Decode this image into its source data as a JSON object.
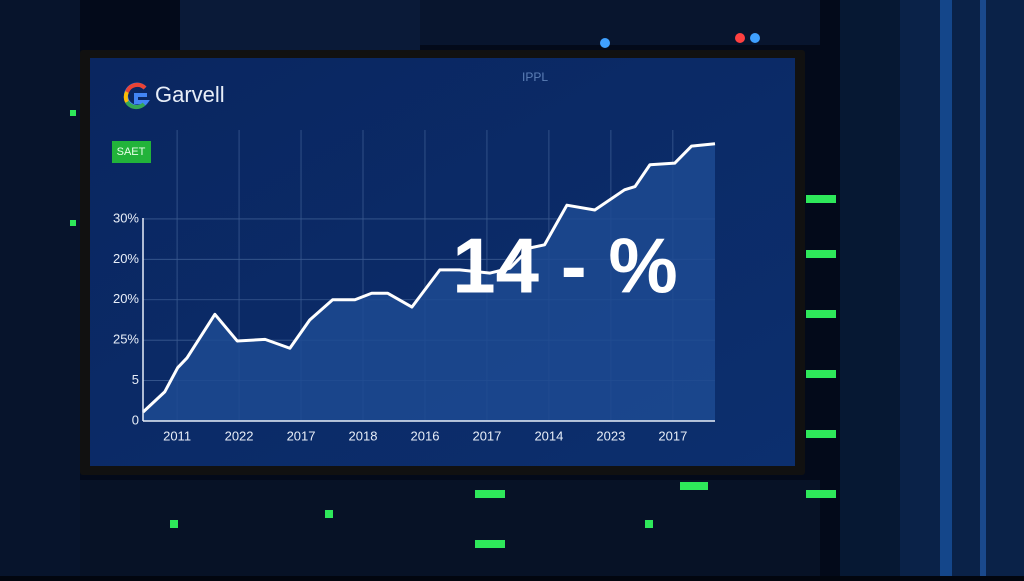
{
  "chart_data": {
    "type": "line",
    "brand": "Garvell",
    "badge": "SAET",
    "faint_label": "IPPL",
    "annotation": "14 - %",
    "x": [
      0,
      0.35,
      0.56,
      0.71,
      1.16,
      1.52,
      1.97,
      2.37,
      2.69,
      3.06,
      3.42,
      3.69,
      3.95,
      4.34,
      4.79,
      5.11,
      5.6,
      5.92,
      6.24,
      6.48,
      6.84,
      7.29,
      7.77,
      7.94,
      8.18,
      8.58,
      8.85,
      9.23
    ],
    "values": [
      1.1,
      3.6,
      6.6,
      7.8,
      13.2,
      9.9,
      10.1,
      9.0,
      12.5,
      15.0,
      15.0,
      15.8,
      15.8,
      14.1,
      18.7,
      18.7,
      18.3,
      18.9,
      21.4,
      21.8,
      26.7,
      26.1,
      28.6,
      29.0,
      31.7,
      31.9,
      34.0,
      34.3
    ],
    "color": "#ffffff",
    "fill_color": "#1d4a92",
    "xlim": [
      0,
      9.23
    ],
    "xticks": [
      {
        "value": 0.55,
        "label": "2011"
      },
      {
        "value": 1.55,
        "label": "2022"
      },
      {
        "value": 2.55,
        "label": "2017"
      },
      {
        "value": 3.55,
        "label": "2018"
      },
      {
        "value": 4.55,
        "label": "2016"
      },
      {
        "value": 5.55,
        "label": "2017"
      },
      {
        "value": 6.55,
        "label": "2014"
      },
      {
        "value": 7.55,
        "label": "2023"
      },
      {
        "value": 8.55,
        "label": "2017"
      }
    ],
    "ylim": [
      0,
      36
    ],
    "yticks": [
      0,
      5,
      {
        "value": 10,
        "label": "25%"
      },
      {
        "value": 15,
        "label": "20%"
      },
      {
        "value": 20,
        "label": "20%"
      },
      {
        "value": 25,
        "label": "30%"
      }
    ],
    "grid": true
  }
}
